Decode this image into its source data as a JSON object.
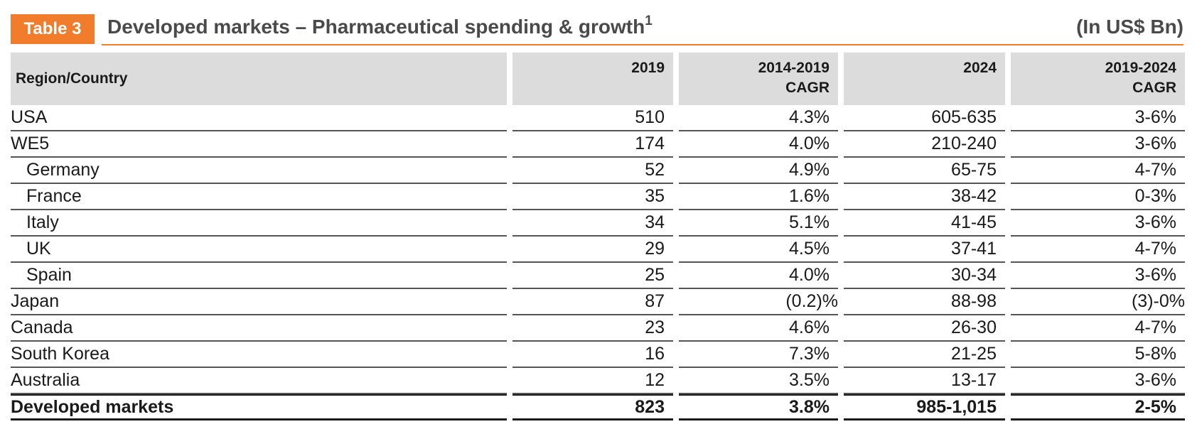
{
  "header": {
    "badge": "Table 3",
    "title": "Developed markets – Pharmaceutical spending & growth",
    "title_sup": "1",
    "unit": "(In US$ Bn)"
  },
  "table": {
    "columns": [
      {
        "lines": [
          "Region/Country"
        ]
      },
      {
        "lines": [
          "2019"
        ]
      },
      {
        "lines": [
          "2014-2019",
          "CAGR"
        ]
      },
      {
        "lines": [
          "2024"
        ]
      },
      {
        "lines": [
          "2019-2024",
          "CAGR"
        ]
      }
    ],
    "rows": [
      {
        "region": "USA",
        "indent": false,
        "v2019": "510",
        "cagr1419": "4.3%",
        "v2024": "605-635",
        "cagr1924": "3-6%"
      },
      {
        "region": "WE5",
        "indent": false,
        "v2019": "174",
        "cagr1419": "4.0%",
        "v2024": "210-240",
        "cagr1924": "3-6%"
      },
      {
        "region": "Germany",
        "indent": true,
        "v2019": "52",
        "cagr1419": "4.9%",
        "v2024": "65-75",
        "cagr1924": "4-7%"
      },
      {
        "region": "France",
        "indent": true,
        "v2019": "35",
        "cagr1419": "1.6%",
        "v2024": "38-42",
        "cagr1924": "0-3%"
      },
      {
        "region": "Italy",
        "indent": true,
        "v2019": "34",
        "cagr1419": "5.1%",
        "v2024": "41-45",
        "cagr1924": "3-6%"
      },
      {
        "region": "UK",
        "indent": true,
        "v2019": "29",
        "cagr1419": "4.5%",
        "v2024": "37-41",
        "cagr1924": "4-7%"
      },
      {
        "region": "Spain",
        "indent": true,
        "v2019": "25",
        "cagr1419": "4.0%",
        "v2024": "30-34",
        "cagr1924": "3-6%"
      },
      {
        "region": "Japan",
        "indent": false,
        "v2019": "87",
        "cagr1419": "(0.2)%",
        "v2024": "88-98",
        "cagr1924": "(3)-0%"
      },
      {
        "region": "Canada",
        "indent": false,
        "v2019": "23",
        "cagr1419": "4.6%",
        "v2024": "26-30",
        "cagr1924": "4-7%"
      },
      {
        "region": "South Korea",
        "indent": false,
        "v2019": "16",
        "cagr1419": "7.3%",
        "v2024": "21-25",
        "cagr1924": "5-8%"
      },
      {
        "region": "Australia",
        "indent": false,
        "v2019": "12",
        "cagr1419": "3.5%",
        "v2024": "13-17",
        "cagr1924": "3-6%"
      }
    ],
    "total": {
      "region": "Developed markets",
      "v2019": "823",
      "cagr1419": "3.8%",
      "v2024": "985-1,015",
      "cagr1924": "2-5%"
    }
  },
  "colors": {
    "accent": "#f07c2c",
    "header_fill": "#dcdcdc"
  }
}
